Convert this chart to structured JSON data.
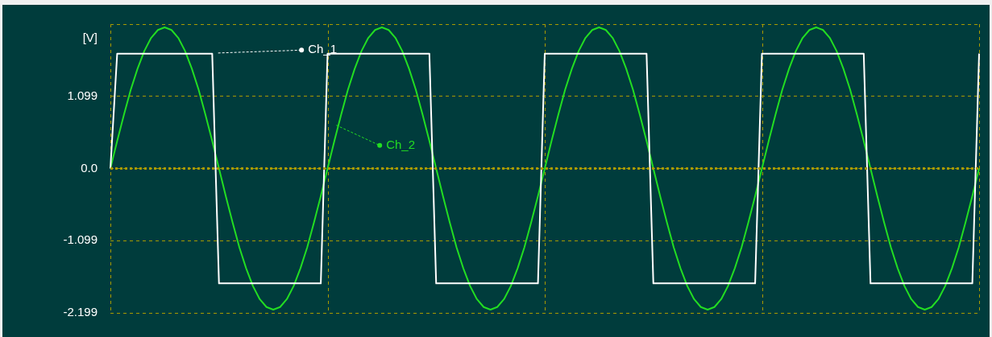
{
  "chart_data": {
    "type": "line",
    "ylabel": "[V]",
    "categories": [
      null,
      null,
      null,
      null,
      null,
      null,
      null,
      null,
      null,
      null,
      null,
      null,
      null,
      null,
      null,
      null,
      null,
      null,
      null,
      null,
      null,
      null,
      null,
      null,
      null,
      null,
      null,
      null,
      null,
      null,
      null,
      null,
      null,
      null,
      null,
      null,
      null,
      null,
      null,
      null,
      null,
      null,
      null,
      null,
      null,
      null,
      null,
      null,
      null,
      null,
      null,
      null,
      null,
      null,
      null,
      null,
      null,
      null,
      null,
      null,
      null,
      null,
      null,
      null,
      null,
      null,
      null,
      null,
      null,
      null,
      null,
      null,
      null,
      null,
      null,
      null,
      null,
      null,
      null,
      null,
      null,
      null,
      null,
      null,
      null,
      null,
      null,
      null,
      null,
      null,
      null,
      null,
      null,
      null,
      null,
      null,
      null,
      null,
      null,
      null,
      null,
      null,
      null,
      null,
      null,
      null,
      null,
      null,
      null,
      null,
      null,
      null,
      null,
      null,
      null,
      null,
      null,
      null,
      null,
      null,
      null,
      null,
      null,
      null,
      null,
      null,
      null,
      null,
      null
    ],
    "ylim": [
      -2.199,
      2.199
    ],
    "yticks": [
      -2.199,
      -1.099,
      {
        "value": 0,
        "label": "0.0"
      },
      1.099,
      {
        "value": 2.199,
        "label": null
      }
    ],
    "grid": true,
    "ref_lines": [
      {
        "axis": "y",
        "value": 0,
        "color": "#a89a00",
        "line_style": "dotted"
      }
    ],
    "legend": "top left",
    "marker": "none",
    "line_style": "solid",
    "series": [
      {
        "name": "Ch_1",
        "color": "#ffffff",
        "values": [
          0,
          1.75,
          1.75,
          1.75,
          1.75,
          1.75,
          1.75,
          1.75,
          1.75,
          1.75,
          1.75,
          1.75,
          1.75,
          1.75,
          1.75,
          1.75,
          -1.75,
          -1.75,
          -1.75,
          -1.75,
          -1.75,
          -1.75,
          -1.75,
          -1.75,
          -1.75,
          -1.75,
          -1.75,
          -1.75,
          -1.75,
          -1.75,
          -1.75,
          -1.75,
          1.75,
          1.75,
          1.75,
          1.75,
          1.75,
          1.75,
          1.75,
          1.75,
          1.75,
          1.75,
          1.75,
          1.75,
          1.75,
          1.75,
          1.75,
          1.75,
          -1.75,
          -1.75,
          -1.75,
          -1.75,
          -1.75,
          -1.75,
          -1.75,
          -1.75,
          -1.75,
          -1.75,
          -1.75,
          -1.75,
          -1.75,
          -1.75,
          -1.75,
          -1.75,
          1.75,
          1.75,
          1.75,
          1.75,
          1.75,
          1.75,
          1.75,
          1.75,
          1.75,
          1.75,
          1.75,
          1.75,
          1.75,
          1.75,
          1.75,
          1.75,
          -1.75,
          -1.75,
          -1.75,
          -1.75,
          -1.75,
          -1.75,
          -1.75,
          -1.75,
          -1.75,
          -1.75,
          -1.75,
          -1.75,
          -1.75,
          -1.75,
          -1.75,
          -1.75,
          1.75,
          1.75,
          1.75,
          1.75,
          1.75,
          1.75,
          1.75,
          1.75,
          1.75,
          1.75,
          1.75,
          1.75,
          1.75,
          1.75,
          1.75,
          1.75,
          -1.75,
          -1.75,
          -1.75,
          -1.75,
          -1.75,
          -1.75,
          -1.75,
          -1.75,
          -1.75,
          -1.75,
          -1.75,
          -1.75,
          -1.75,
          -1.75,
          -1.75,
          -1.75,
          1.75
        ]
      },
      {
        "name": "Ch_2",
        "color": "#22dd22",
        "values": [
          0,
          0.42,
          0.82,
          1.2,
          1.52,
          1.79,
          1.99,
          2.11,
          2.15,
          2.11,
          1.99,
          1.79,
          1.52,
          1.2,
          0.82,
          0.42,
          0,
          -0.42,
          -0.82,
          -1.2,
          -1.52,
          -1.79,
          -1.99,
          -2.11,
          -2.15,
          -2.11,
          -1.99,
          -1.79,
          -1.52,
          -1.2,
          -0.82,
          -0.42,
          0,
          0.42,
          0.82,
          1.2,
          1.52,
          1.79,
          1.99,
          2.11,
          2.15,
          2.11,
          1.99,
          1.79,
          1.52,
          1.2,
          0.82,
          0.42,
          0,
          -0.42,
          -0.82,
          -1.2,
          -1.52,
          -1.79,
          -1.99,
          -2.11,
          -2.15,
          -2.11,
          -1.99,
          -1.79,
          -1.52,
          -1.2,
          -0.82,
          -0.42,
          0,
          0.42,
          0.82,
          1.2,
          1.52,
          1.79,
          1.99,
          2.11,
          2.15,
          2.11,
          1.99,
          1.79,
          1.52,
          1.2,
          0.82,
          0.42,
          0,
          -0.42,
          -0.82,
          -1.2,
          -1.52,
          -1.79,
          -1.99,
          -2.11,
          -2.15,
          -2.11,
          -1.99,
          -1.79,
          -1.52,
          -1.2,
          -0.82,
          -0.42,
          0,
          0.42,
          0.82,
          1.2,
          1.52,
          1.79,
          1.99,
          2.11,
          2.15,
          2.11,
          1.99,
          1.79,
          1.52,
          1.2,
          0.82,
          0.42,
          0,
          -0.42,
          -0.82,
          -1.2,
          -1.52,
          -1.79,
          -1.99,
          -2.11,
          -2.15,
          -2.11,
          -1.99,
          -1.79,
          -1.52,
          -1.2,
          -0.82,
          -0.42,
          0
        ]
      }
    ]
  }
}
